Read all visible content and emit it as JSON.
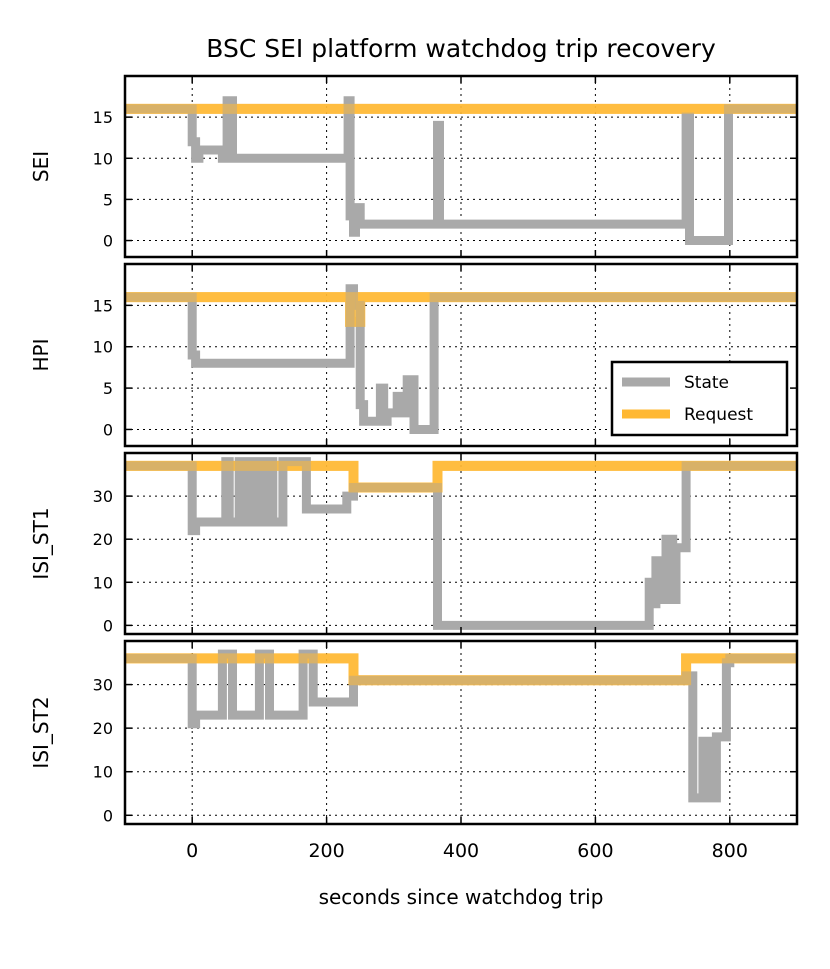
{
  "chart_data": {
    "type": "line",
    "title": "BSC SEI platform watchdog trip recovery",
    "xlabel": "seconds since watchdog trip",
    "xlim": [
      -100,
      900
    ],
    "xticks": [
      0,
      200,
      400,
      600,
      800
    ],
    "xtick_labels": [
      "0",
      "200",
      "400",
      "600",
      "800"
    ],
    "legend": {
      "location": "center-right of HPI panel",
      "entries": [
        {
          "name": "State",
          "color": "#a9a9a9"
        },
        {
          "name": "Request",
          "color": "#ffb833"
        }
      ]
    },
    "grid": true,
    "panels": [
      {
        "name": "SEI",
        "ylabel": "SEI",
        "ylim": [
          -2,
          20
        ],
        "yticks": [
          0,
          5,
          10,
          15
        ],
        "ytick_labels": [
          "0",
          "5",
          "10",
          "15"
        ],
        "series": [
          {
            "name": "Request",
            "x": [
              -100,
              900
            ],
            "y": [
              16,
              16
            ]
          },
          {
            "name": "State",
            "x": [
              -100,
              0,
              0,
              5,
              5,
              10,
              10,
              45,
              45,
              52,
              52,
              60,
              60,
              232,
              232,
              235,
              235,
              240,
              240,
              243,
              243,
              246,
              246,
              250,
              250,
              365,
              365,
              368,
              368,
              735,
              735,
              740,
              740,
              798,
              798,
              900
            ],
            "y": [
              16,
              16,
              12,
              12,
              10,
              10,
              11,
              11,
              10,
              10,
              17,
              17,
              10,
              10,
              17,
              17,
              3,
              3,
              1,
              1,
              3,
              3,
              4,
              4,
              2,
              2,
              14,
              14,
              2,
              2,
              15,
              15,
              0,
              0,
              16,
              16
            ]
          }
        ]
      },
      {
        "name": "HPI",
        "ylabel": "HPI",
        "ylim": [
          -2,
          20
        ],
        "yticks": [
          0,
          5,
          10,
          15
        ],
        "ytick_labels": [
          "0",
          "5",
          "10",
          "15"
        ],
        "series": [
          {
            "name": "Request",
            "x": [
              -100,
              235,
              235,
              250,
              250,
              900
            ],
            "y": [
              16,
              16,
              13,
              13,
              16,
              16
            ]
          },
          {
            "name": "State",
            "x": [
              -100,
              0,
              0,
              5,
              5,
              235,
              235,
              240,
              240,
              250,
              250,
              255,
              255,
              260,
              260,
              280,
              280,
              285,
              285,
              290,
              290,
              305,
              305,
              315,
              315,
              320,
              320,
              330,
              330,
              335,
              335,
              360,
              360,
              365,
              365,
              900
            ],
            "y": [
              16,
              16,
              9,
              9,
              8,
              8,
              17,
              17,
              15,
              15,
              3,
              3,
              1,
              1,
              1,
              1,
              5,
              5,
              1,
              1,
              2,
              2,
              4,
              4,
              2,
              2,
              6,
              6,
              0,
              0,
              0,
              0,
              16,
              16,
              16,
              16
            ]
          }
        ]
      },
      {
        "name": "ISI_ST1",
        "ylabel": "ISI_ST1",
        "ylim": [
          -2,
          40
        ],
        "yticks": [
          0,
          10,
          20,
          30
        ],
        "ytick_labels": [
          "0",
          "10",
          "20",
          "30"
        ],
        "series": [
          {
            "name": "Request",
            "x": [
              -100,
              240,
              240,
              365,
              365,
              900
            ],
            "y": [
              37,
              37,
              32,
              32,
              37,
              37
            ]
          },
          {
            "name": "State",
            "x": [
              -100,
              0,
              0,
              5,
              5,
              15,
              15,
              50,
              50,
              55,
              55,
              70,
              70,
              75,
              75,
              85,
              85,
              90,
              90,
              100,
              100,
              105,
              105,
              115,
              115,
              120,
              120,
              135,
              135,
              170,
              170,
              180,
              180,
              230,
              230,
              240,
              240,
              245,
              245,
              365,
              365,
              370,
              370,
              680,
              680,
              685,
              685,
              690,
              690,
              700,
              700,
              705,
              705,
              715,
              715,
              720,
              720,
              735,
              735,
              740,
              740,
              900
            ],
            "y": [
              37,
              37,
              22,
              22,
              24,
              24,
              24,
              24,
              38,
              38,
              24,
              24,
              38,
              38,
              24,
              24,
              38,
              38,
              24,
              24,
              38,
              38,
              24,
              24,
              38,
              38,
              24,
              24,
              38,
              38,
              27,
              27,
              27,
              27,
              30,
              30,
              32,
              32,
              32,
              32,
              0,
              0,
              0,
              0,
              10,
              10,
              5,
              5,
              15,
              15,
              6,
              6,
              20,
              20,
              6,
              6,
              18,
              18,
              37,
              37,
              37,
              37
            ]
          }
        ]
      },
      {
        "name": "ISI_ST2",
        "ylabel": "ISI_ST2",
        "ylim": [
          -2,
          40
        ],
        "yticks": [
          0,
          10,
          20,
          30
        ],
        "ytick_labels": [
          "0",
          "10",
          "20",
          "30"
        ],
        "series": [
          {
            "name": "Request",
            "x": [
              -100,
              240,
              240,
              735,
              735,
              900
            ],
            "y": [
              36,
              36,
              31,
              31,
              36,
              36
            ]
          },
          {
            "name": "State",
            "x": [
              -100,
              0,
              0,
              5,
              5,
              15,
              15,
              45,
              45,
              60,
              60,
              100,
              100,
              115,
              115,
              165,
              165,
              180,
              180,
              240,
              240,
              735,
              735,
              745,
              745,
              760,
              760,
              770,
              770,
              780,
              780,
              795,
              795,
              800,
              800,
              900
            ],
            "y": [
              36,
              36,
              21,
              21,
              23,
              23,
              23,
              23,
              37,
              37,
              23,
              23,
              37,
              37,
              23,
              23,
              37,
              37,
              26,
              26,
              31,
              31,
              32,
              32,
              4,
              4,
              17,
              17,
              4,
              4,
              18,
              18,
              35,
              35,
              36,
              36
            ]
          }
        ]
      }
    ]
  }
}
